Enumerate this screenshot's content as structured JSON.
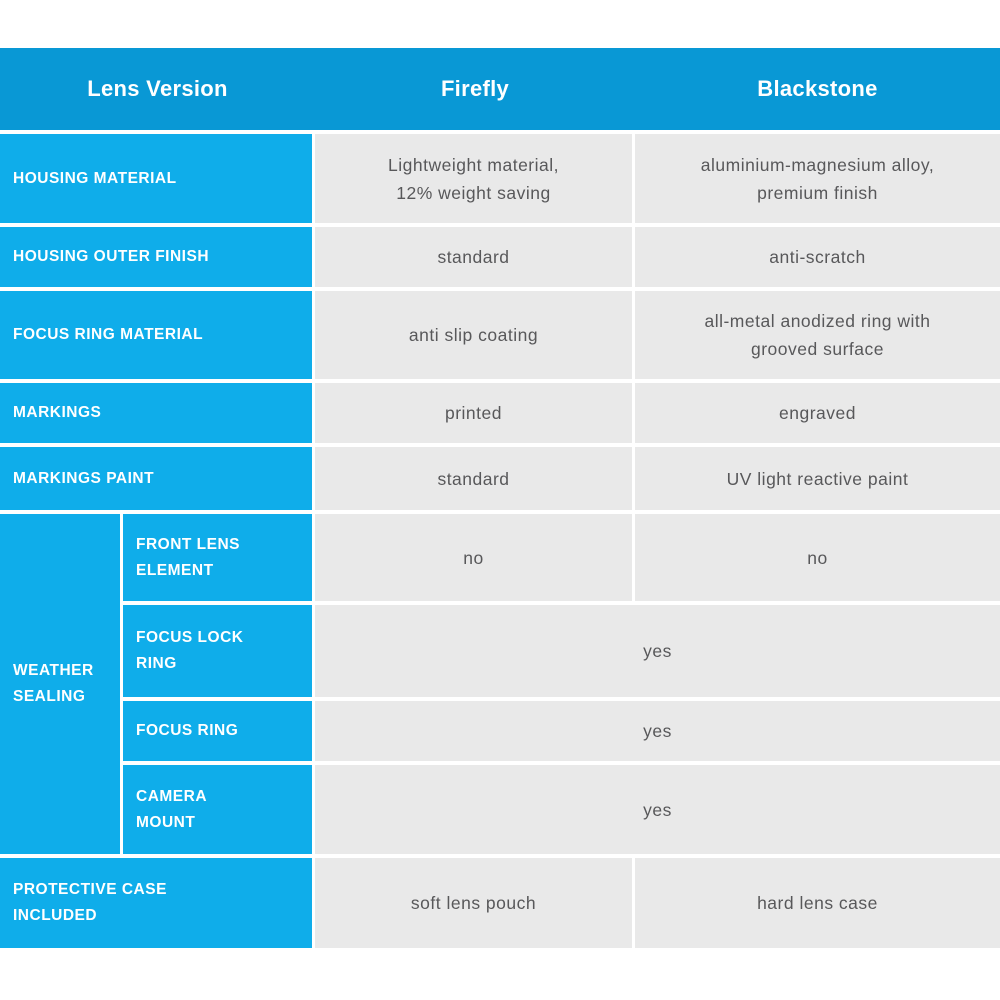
{
  "header": {
    "lens_version": "Lens Version",
    "firefly": "Firefly",
    "blackstone": "Blackstone"
  },
  "rows": [
    {
      "label": "HOUSING MATERIAL",
      "firefly": "Lightweight material,\n12% weight saving",
      "blackstone": "aluminium-magnesium alloy,\npremium finish"
    },
    {
      "label": "HOUSING OUTER FINISH",
      "firefly": "standard",
      "blackstone": "anti-scratch"
    },
    {
      "label": "FOCUS RING MATERIAL",
      "firefly": "anti slip coating",
      "blackstone": "all-metal anodized ring with\ngrooved surface"
    },
    {
      "label": "MARKINGS",
      "firefly": "printed",
      "blackstone": "engraved"
    },
    {
      "label": "MARKINGS PAINT",
      "firefly": "standard",
      "blackstone": "UV light reactive paint"
    }
  ],
  "weather_sealing": {
    "label": "WEATHER\nSEALING",
    "subrows": [
      {
        "label": "FRONT LENS\nELEMENT",
        "firefly": "no",
        "blackstone": "no"
      },
      {
        "label": "FOCUS LOCK\nRING",
        "both": "yes"
      },
      {
        "label": "FOCUS RING",
        "both": "yes"
      },
      {
        "label": "CAMERA\nMOUNT",
        "both": "yes"
      }
    ]
  },
  "footer_row": {
    "label": "PROTECTIVE CASE\nINCLUDED",
    "firefly": "soft lens pouch",
    "blackstone": "hard lens case"
  },
  "colors": {
    "header_blue": "#0998d5",
    "cell_blue": "#0fadea",
    "cell_gray": "#e9e9e9",
    "value_text": "#58585a",
    "page_bg": "#ffffff"
  },
  "chart_data": {
    "type": "table",
    "title": "Lens Version comparison",
    "columns": [
      "Lens Version",
      "Firefly",
      "Blackstone"
    ],
    "rows": [
      [
        "HOUSING MATERIAL",
        "Lightweight material, 12% weight saving",
        "aluminium-magnesium alloy, premium finish"
      ],
      [
        "HOUSING OUTER FINISH",
        "standard",
        "anti-scratch"
      ],
      [
        "FOCUS RING MATERIAL",
        "anti slip coating",
        "all-metal anodized ring with grooved surface"
      ],
      [
        "MARKINGS",
        "printed",
        "engraved"
      ],
      [
        "MARKINGS PAINT",
        "standard",
        "UV light reactive paint"
      ],
      [
        "WEATHER SEALING - FRONT LENS ELEMENT",
        "no",
        "no"
      ],
      [
        "WEATHER SEALING - FOCUS LOCK RING",
        "yes",
        "yes"
      ],
      [
        "WEATHER SEALING - FOCUS RING",
        "yes",
        "yes"
      ],
      [
        "WEATHER SEALING - CAMERA MOUNT",
        "yes",
        "yes"
      ],
      [
        "PROTECTIVE CASE INCLUDED",
        "soft lens pouch",
        "hard lens case"
      ]
    ],
    "layout": {
      "header_row": true,
      "merged_cells": "weather sealing yes-rows span Firefly+Blackstone",
      "grid": "white 3-4px separators"
    }
  }
}
